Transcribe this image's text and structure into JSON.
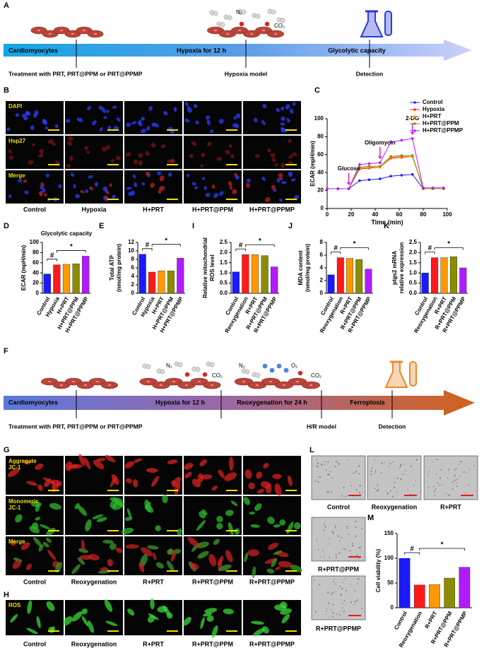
{
  "panel_labels": [
    "A",
    "B",
    "C",
    "D",
    "E",
    "I",
    "J",
    "K",
    "F",
    "G",
    "H",
    "L",
    "M"
  ],
  "scheme_a": {
    "stages": [
      "Cardiomyocytes",
      "Hypoxia for 12 h",
      "Glycolytic capacity"
    ],
    "notes": [
      "Treatment with PRT, PRT@PPM or PRT@PPMP",
      "Hypoxia model",
      "Detection"
    ],
    "gases": [
      "N₂",
      "CO₂"
    ]
  },
  "images_b": {
    "rows": [
      [
        "DAPI"
      ],
      [
        "Hsp27"
      ],
      [
        "Merge"
      ]
    ],
    "columns": [
      "Control",
      "Hypoxia",
      "H+PRT",
      "H+PRT@PPM",
      "H+PRT@PPMP"
    ]
  },
  "scheme_f": {
    "stages": [
      "Cardiomyocytes",
      "Hypoxia for 12 h",
      "Reoxygenation for 24 h",
      "Ferroptosis"
    ],
    "notes": [
      "Treatment with PRT, PRT@PPM or PRT@PPMP",
      "H/R model",
      "Detection"
    ],
    "gases": [
      "N₂",
      "CO₂",
      "N₂",
      "O₂",
      "CO₂"
    ]
  },
  "images_g": {
    "rows": [
      [
        "Aggregate",
        "JC-1"
      ],
      [
        "Monomeric",
        "JC-1"
      ],
      [
        "Merge"
      ]
    ],
    "columns": [
      "Control",
      "Reoxygenation",
      "R+PRT",
      "R+PRT@PPM",
      "R+PRT@PPMP"
    ]
  },
  "images_h": {
    "rows": [
      [
        "ROS"
      ]
    ],
    "columns": [
      "Control",
      "Reoxygenation",
      "R+PRT",
      "R+PRT@PPM",
      "R+PRT@PPMP"
    ]
  },
  "images_l": {
    "labels": [
      "Control",
      "Reoxygenation",
      "R+PRT",
      "R+PRT@PPM",
      "R+PRT@PPMP"
    ]
  },
  "chart_data": [
    {
      "type": "line",
      "x_label": "Time (min)",
      "y_label": [
        "ECAR (mpH/min)"
      ],
      "x": [
        0,
        9,
        18,
        27,
        35,
        44,
        53,
        62,
        71,
        80,
        88,
        97
      ],
      "xlim": [
        0,
        100
      ],
      "xticks": [
        0,
        20,
        40,
        60,
        80,
        100
      ],
      "ylim": [
        0,
        100
      ],
      "yticks": [
        0,
        20,
        40,
        60,
        80,
        100
      ],
      "legend": "upper right",
      "annotations": [
        {
          "text": "Glucose",
          "x": 18
        },
        {
          "text": "Oligomycin",
          "x": 44
        },
        {
          "text": "2-DG",
          "x": 71
        }
      ],
      "series": [
        {
          "name": "Control",
          "color": "#1a1aff",
          "values": [
            22,
            22,
            22,
            31,
            32,
            33,
            36,
            37,
            38,
            22,
            22,
            22
          ]
        },
        {
          "name": "Hypoxia",
          "color": "#ff1a1a",
          "values": [
            22,
            22,
            22,
            44,
            45,
            46,
            56,
            57,
            58,
            22,
            22,
            22
          ]
        },
        {
          "name": "H+PRT",
          "color": "#ff9900",
          "values": [
            22,
            22,
            22,
            45,
            46,
            46,
            57,
            58,
            58,
            22,
            22,
            22
          ]
        },
        {
          "name": "H+PRT@PPM",
          "color": "#8c8c00",
          "values": [
            22,
            22,
            22,
            46,
            47,
            47,
            58,
            59,
            59,
            22,
            22,
            22
          ]
        },
        {
          "name": "H+PRT@PPMP",
          "color": "#b21aff",
          "values": [
            22,
            22,
            22,
            49,
            50,
            51,
            74,
            76,
            78,
            23,
            23,
            23
          ]
        }
      ]
    },
    {
      "type": "bar",
      "title": "Glycolytic capacity",
      "y_label": [
        "ECAR (mpH/min)"
      ],
      "categories": [
        "Control",
        "Hypoxia",
        "H+PRT",
        "H+PRT@PPM",
        "H+PRT@PPMP"
      ],
      "values": [
        38,
        56,
        57,
        58,
        73
      ],
      "colors": [
        "#1a1aff",
        "#ff1a1a",
        "#ff9900",
        "#8c8c00",
        "#b21aff"
      ],
      "ylim": [
        0,
        100
      ],
      "yticks": [
        0,
        20,
        40,
        60,
        80,
        100
      ],
      "markers": [
        "#",
        "*"
      ]
    },
    {
      "type": "bar",
      "y_label": [
        "Total ATP",
        "(nmol/mg protein)"
      ],
      "categories": [
        "Control",
        "Hypoxia",
        "H+PRT",
        "H+PRT@PPM",
        "H+PRT@PPMP"
      ],
      "values": [
        9.2,
        5.0,
        5.3,
        5.3,
        8.3
      ],
      "colors": [
        "#1a1aff",
        "#ff1a1a",
        "#ff9900",
        "#8c8c00",
        "#b21aff"
      ],
      "ylim": [
        0,
        12
      ],
      "yticks": [
        0,
        2,
        4,
        6,
        8,
        10,
        12
      ],
      "markers": [
        "#",
        "*"
      ]
    },
    {
      "type": "bar",
      "y_label": [
        "Relative mitochondrial",
        "ROS level"
      ],
      "categories": [
        "Control",
        "Reoxygenation",
        "R+PRT",
        "R+PRT@PPM",
        "R+PRT@PPMP"
      ],
      "values": [
        1.05,
        1.9,
        1.9,
        1.85,
        1.3
      ],
      "colors": [
        "#1a1aff",
        "#ff1a1a",
        "#ff9900",
        "#8c8c00",
        "#b21aff"
      ],
      "ylim": [
        0,
        2.5
      ],
      "yticks": [
        {
          "value": 0,
          "label": "0.0"
        },
        0.5,
        {
          "value": 1,
          "label": "1.0"
        },
        1.5,
        {
          "value": 2,
          "label": "2.0"
        },
        2.5
      ],
      "markers": [
        "#",
        "*"
      ]
    },
    {
      "type": "bar",
      "y_label": [
        "MDA content",
        "(nmol/mg protein)"
      ],
      "categories": [
        "Control",
        "Reoxygenation",
        "R+PRT",
        "R+PRT@PPM",
        "R+PRT@PPMP"
      ],
      "values": [
        2.9,
        5.6,
        5.5,
        5.3,
        3.8
      ],
      "colors": [
        "#1a1aff",
        "#ff1a1a",
        "#ff9900",
        "#8c8c00",
        "#b21aff"
      ],
      "ylim": [
        0,
        8
      ],
      "yticks": [
        0,
        2,
        4,
        6,
        8
      ],
      "markers": [
        "#",
        "*"
      ]
    },
    {
      "type": "bar",
      "y_label": [
        "ptgs2 mRNA",
        "relative expression"
      ],
      "categories": [
        "Control",
        "Reoxygenation",
        "R+PRT",
        "R+PRT@PPM",
        "R+PRT@PPMP"
      ],
      "values": [
        1.0,
        1.75,
        1.75,
        1.8,
        1.25
      ],
      "colors": [
        "#1a1aff",
        "#ff1a1a",
        "#ff9900",
        "#8c8c00",
        "#b21aff"
      ],
      "ylim": [
        0,
        2.5
      ],
      "yticks": [
        {
          "value": 0,
          "label": "0.0"
        },
        0.5,
        {
          "value": 1,
          "label": "1.0"
        },
        1.5,
        {
          "value": 2,
          "label": "2.0"
        },
        2.5
      ],
      "markers": [
        "#",
        "*"
      ]
    },
    {
      "type": "bar",
      "y_label": [
        "Cell viability (%)"
      ],
      "categories": [
        "Control",
        "Reoxygenation",
        "R+PRT",
        "R+PRT@PPM",
        "R+PRT@PPMP"
      ],
      "values": [
        100,
        46,
        47,
        60,
        82
      ],
      "colors": [
        "#1a1aff",
        "#ff1a1a",
        "#ff9900",
        "#8c8c00",
        "#b21aff"
      ],
      "ylim": [
        0,
        150
      ],
      "yticks": [
        0,
        50,
        100,
        150
      ],
      "markers": [
        "#",
        "*"
      ]
    }
  ]
}
